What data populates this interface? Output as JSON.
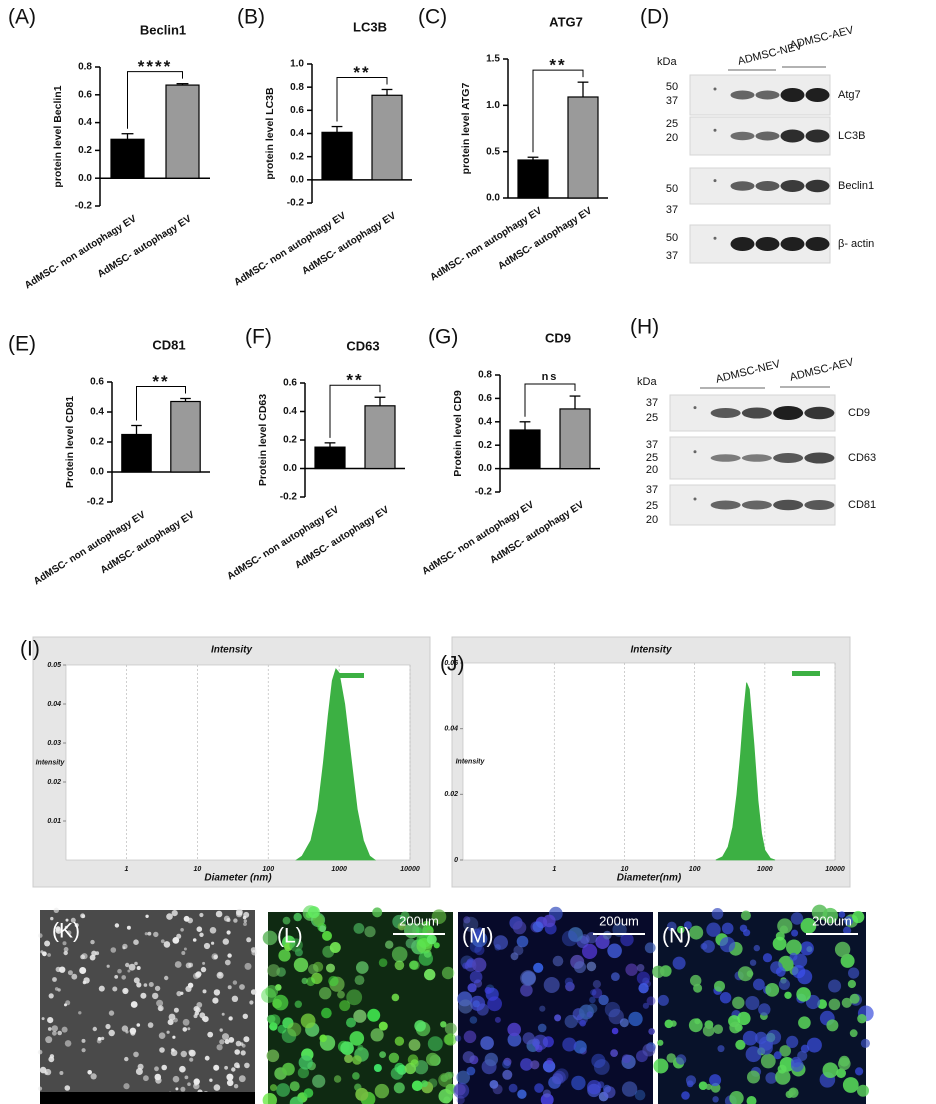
{
  "panel_labels": [
    "(A)",
    "(B)",
    "(C)",
    "(D)",
    "(E)",
    "(F)",
    "(G)",
    "(H)",
    "(I)",
    "(J)",
    "(K)",
    "(L)",
    "(M)",
    "(N)"
  ],
  "chart_data": [
    {
      "type": "bar",
      "title": "Beclin1",
      "y_label": "protein level Beclin1",
      "categories": [
        "AdMSC- non autophagy EV",
        "AdMSC- autophagy EV"
      ],
      "values": [
        0.28,
        0.67
      ],
      "errors": [
        0.04,
        0.01
      ],
      "colors": [
        "#000000",
        "#9a9a9a"
      ],
      "significance": "****",
      "ylim": [
        -0.2,
        0.8
      ],
      "yticks": [
        -0.2,
        {
          "value": 0,
          "label": "0.0"
        },
        0.2,
        0.4,
        0.6,
        0.8
      ]
    },
    {
      "type": "bar",
      "title": "LC3B",
      "y_label": "protein level LC3B",
      "categories": [
        "AdMSC- non autophagy EV",
        "AdMSC- autophagy EV"
      ],
      "values": [
        0.41,
        0.73
      ],
      "errors": [
        0.05,
        0.05
      ],
      "colors": [
        "#000000",
        "#9a9a9a"
      ],
      "significance": "**",
      "ylim": [
        -0.2,
        1.0
      ],
      "yticks": [
        -0.2,
        {
          "value": 0,
          "label": "0.0"
        },
        0.2,
        0.4,
        0.6,
        0.8,
        {
          "value": 1,
          "label": "1.0"
        }
      ]
    },
    {
      "type": "bar",
      "title": "ATG7",
      "y_label": "protein level ATG7",
      "categories": [
        "AdMSC- non autophagy EV",
        "AdMSC- autophagy EV"
      ],
      "values": [
        0.41,
        1.09
      ],
      "errors": [
        0.03,
        0.16
      ],
      "colors": [
        "#000000",
        "#9a9a9a"
      ],
      "significance": "**",
      "ylim": [
        0,
        1.5
      ],
      "yticks": [
        {
          "value": 0,
          "label": "0.0"
        },
        0.5,
        {
          "value": 1,
          "label": "1.0"
        },
        1.5
      ]
    },
    {
      "type": "bar",
      "title": "CD81",
      "y_label": "Protein level CD81",
      "categories": [
        "AdMSC- non autophagy EV",
        "AdMSC- autophagy EV"
      ],
      "values": [
        0.25,
        0.47
      ],
      "errors": [
        0.06,
        0.02
      ],
      "colors": [
        "#000000",
        "#9a9a9a"
      ],
      "significance": "**",
      "ylim": [
        -0.2,
        0.6
      ],
      "yticks": [
        -0.2,
        {
          "value": 0,
          "label": "0.0"
        },
        0.2,
        0.4,
        0.6
      ]
    },
    {
      "type": "bar",
      "title": "CD63",
      "y_label": "Protein level CD63",
      "categories": [
        "AdMSC- non autophagy EV",
        "AdMSC- autophagy EV"
      ],
      "values": [
        0.15,
        0.44
      ],
      "errors": [
        0.03,
        0.06
      ],
      "colors": [
        "#000000",
        "#9a9a9a"
      ],
      "significance": "**",
      "ylim": [
        -0.2,
        0.6
      ],
      "yticks": [
        -0.2,
        {
          "value": 0,
          "label": "0.0"
        },
        0.2,
        0.4,
        0.6
      ]
    },
    {
      "type": "bar",
      "title": "CD9",
      "y_label": "Protein level CD9",
      "categories": [
        "AdMSC- non autophagy EV",
        "AdMSC- autophagy EV"
      ],
      "values": [
        0.33,
        0.51
      ],
      "errors": [
        0.07,
        0.11
      ],
      "colors": [
        "#000000",
        "#9a9a9a"
      ],
      "significance": "ns",
      "ylim": [
        -0.2,
        0.8
      ],
      "yticks": [
        -0.2,
        {
          "value": 0,
          "label": "0.0"
        },
        0.2,
        0.4,
        0.6,
        0.8
      ]
    },
    {
      "type": "area",
      "title": "Intensity",
      "x_label": "Diameter (nm)",
      "y_label": "Intensity",
      "x_scale": "log",
      "grid": true,
      "color": "#3cb043",
      "x": [
        250,
        300,
        400,
        500,
        600,
        700,
        800,
        900,
        1000,
        1200,
        1500,
        1800,
        2200,
        2700,
        3200
      ],
      "values": [
        0,
        0.001,
        0.005,
        0.013,
        0.025,
        0.037,
        0.046,
        0.049,
        0.048,
        0.04,
        0.025,
        0.013,
        0.005,
        0.001,
        0
      ],
      "xlim": [
        0.14,
        10000
      ],
      "ylim": [
        0,
        0.05
      ],
      "xticks": [
        1,
        10,
        100,
        1000,
        10000
      ],
      "yticks": [
        0.01,
        0.02,
        0.03,
        0.04,
        0.05
      ]
    },
    {
      "type": "area",
      "title": "Intensity",
      "x_label": "Diameter(nm)",
      "y_label": "Intensity",
      "x_scale": "log",
      "grid": true,
      "color": "#3cb043",
      "x": [
        200,
        250,
        300,
        350,
        400,
        450,
        500,
        550,
        600,
        700,
        800,
        900,
        1000,
        1200,
        1400
      ],
      "values": [
        0,
        0.001,
        0.004,
        0.01,
        0.02,
        0.032,
        0.045,
        0.054,
        0.052,
        0.035,
        0.018,
        0.008,
        0.003,
        0.0005,
        0
      ],
      "xlim": [
        0.05,
        10000
      ],
      "ylim": [
        0,
        0.06
      ],
      "xticks": [
        1,
        10,
        100,
        1000,
        10000
      ],
      "yticks": [
        0,
        0.02,
        0.04,
        0.06
      ]
    }
  ],
  "blots": [
    {
      "unit": "kDa",
      "groups": [
        "ADMSC-NEV",
        "ADMSC-AEV"
      ],
      "rows": [
        {
          "label": "Atg7",
          "markers": [
            "50",
            "37"
          ]
        },
        {
          "label": "LC3B",
          "markers": [
            "25",
            "20"
          ]
        },
        {
          "label": "Beclin1",
          "markers": [
            "50",
            "37"
          ]
        },
        {
          "label": "β- actin",
          "markers": [
            "50",
            "37"
          ]
        }
      ]
    },
    {
      "unit": "kDa",
      "groups": [
        "ADMSC-NEV",
        "ADMSC-AEV"
      ],
      "rows": [
        {
          "label": "CD9",
          "markers": [
            "37",
            "25"
          ]
        },
        {
          "label": "CD63",
          "markers": [
            "37",
            "25",
            "20"
          ]
        },
        {
          "label": "CD81",
          "markers": [
            "37",
            "25",
            "20"
          ]
        }
      ]
    }
  ],
  "images": [
    {
      "scale": "200um"
    },
    {
      "scale": "200um"
    },
    {
      "scale": "200um"
    }
  ]
}
